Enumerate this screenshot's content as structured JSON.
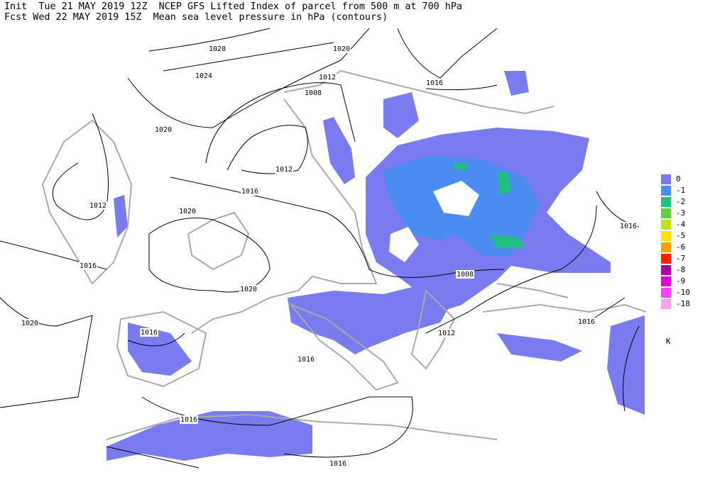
{
  "header": {
    "line1": "Init  Tue 21 MAY 2019 12Z  NCEP GFS Lifted Index of parcel from 500 m at 700 hPa",
    "line2": "Fcst Wed 22 MAY 2019 15Z  Mean sea level pressure in hPa (contours)"
  },
  "contour_labels": [
    "1028",
    "1020",
    "1024",
    "1012",
    "1016",
    "1008",
    "1020",
    "1012",
    "1016",
    "1012",
    "1020",
    "1016",
    "1016",
    "1008",
    "1020",
    "1020",
    "1016",
    "1016",
    "1012",
    "1016",
    "1016",
    "1016"
  ],
  "legend": {
    "entries": [
      {
        "label": "0",
        "color": "#7b7bf0"
      },
      {
        "label": "-1",
        "color": "#4a8cf0"
      },
      {
        "label": "-2",
        "color": "#20c080"
      },
      {
        "label": "-3",
        "color": "#60d040"
      },
      {
        "label": "-4",
        "color": "#c0e020"
      },
      {
        "label": "-5",
        "color": "#ffe000"
      },
      {
        "label": "-6",
        "color": "#ffa000"
      },
      {
        "label": "-7",
        "color": "#ff2000"
      },
      {
        "label": "-8",
        "color": "#b000a0"
      },
      {
        "label": "-9",
        "color": "#e000d0"
      },
      {
        "label": "-10",
        "color": "#ff40ff"
      },
      {
        "label": "-18",
        "color": "#ffa0f0"
      }
    ],
    "unit": "K"
  }
}
